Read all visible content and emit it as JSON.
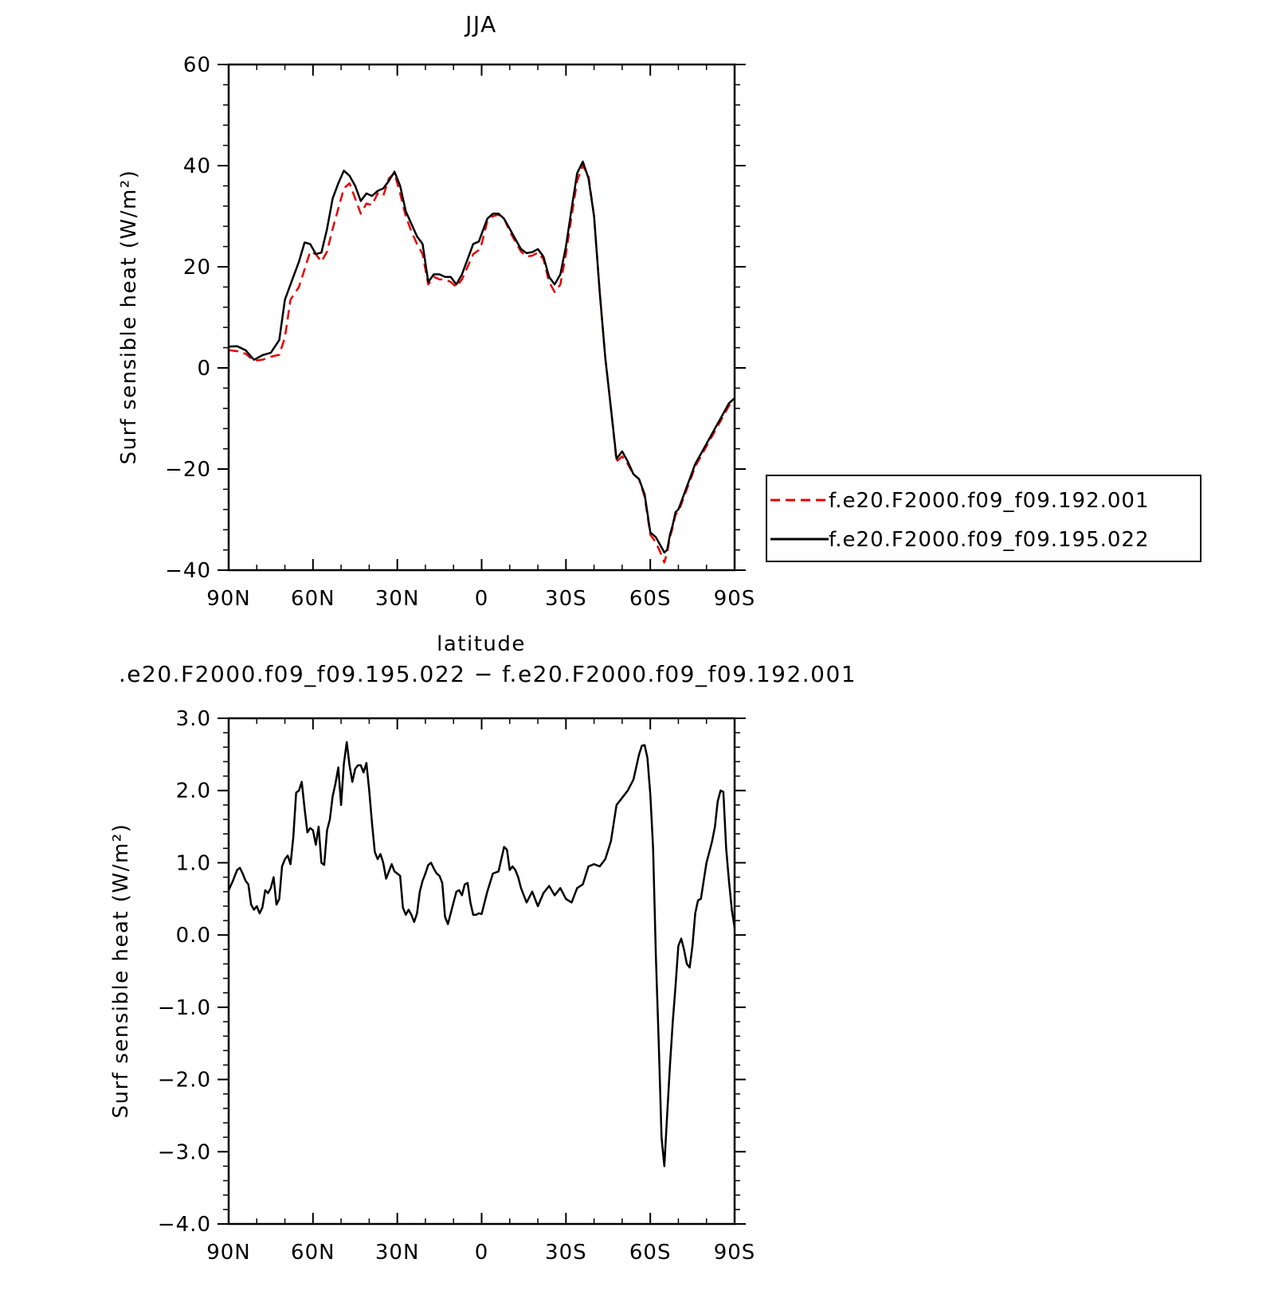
{
  "chart_data": [
    {
      "type": "line",
      "title": "JJA",
      "xlabel": "latitude",
      "ylabel": "Surf sensible heat (W/m²)",
      "xlim": [
        90,
        -90
      ],
      "ylim": [
        -40,
        60
      ],
      "xticks": [
        90,
        60,
        30,
        0,
        -30,
        -60,
        -90
      ],
      "xtick_labels": [
        "90N",
        "60N",
        "30N",
        "0",
        "30S",
        "60S",
        "90S"
      ],
      "yticks": [
        -40,
        -20,
        0,
        20,
        40,
        60
      ],
      "ytick_labels": [
        "−40",
        "−20",
        "0",
        "20",
        "40",
        "60"
      ],
      "legend_position": "right",
      "series": [
        {
          "name": "f.e20.F2000.f09_f09.192.001",
          "color": "#e60000",
          "style": "dashed",
          "x": [
            90,
            87,
            84,
            81,
            78,
            75,
            72,
            70,
            68,
            65,
            63,
            61,
            59,
            57,
            55,
            53,
            51,
            49,
            47,
            45,
            43,
            41,
            39,
            37,
            35,
            33,
            31,
            29,
            27,
            25,
            23,
            21,
            19,
            17,
            15,
            13,
            11,
            9,
            7,
            5,
            3,
            1,
            0,
            -2,
            -4,
            -6,
            -8,
            -10,
            -12,
            -14,
            -16,
            -18,
            -20,
            -22,
            -24,
            -26,
            -28,
            -30,
            -32,
            -34,
            -36,
            -38,
            -40,
            -42,
            -44,
            -46,
            -48,
            -50,
            -52,
            -54,
            -56,
            -58,
            -60,
            -62,
            -64,
            -65,
            -66,
            -67,
            -68,
            -69,
            -70,
            -71,
            -72,
            -73,
            -74,
            -75,
            -76,
            -77,
            -78,
            -79,
            -80,
            -81,
            -82,
            -83,
            -84,
            -85,
            -86,
            -87,
            -88,
            -90
          ],
          "y": [
            3.5,
            3.3,
            2.8,
            1.4,
            1.6,
            2.2,
            2.6,
            6,
            13.5,
            16,
            19.5,
            23,
            22.5,
            21,
            23,
            27.5,
            31.5,
            35.5,
            36.5,
            33.5,
            30.5,
            32.5,
            32.2,
            34.5,
            34.0,
            37.5,
            38.5,
            34.5,
            30,
            27,
            24.5,
            22.5,
            16.5,
            18,
            17.5,
            17.5,
            17,
            16,
            17.5,
            20,
            22.5,
            23.3,
            24.5,
            29.0,
            30.0,
            30.3,
            29.5,
            27.0,
            25,
            23,
            22.0,
            22.2,
            22.8,
            21.5,
            17.0,
            15.0,
            16.5,
            22.5,
            30,
            37,
            40,
            38,
            30,
            15,
            2,
            -8,
            -18.5,
            -17.5,
            -19,
            -21,
            -22,
            -25.5,
            -33,
            -34.5,
            -37,
            -38.5,
            -36.5,
            -33.5,
            -31.5,
            -29,
            -28.5,
            -27,
            -25.5,
            -24,
            -22.5,
            -21,
            -19.5,
            -18.5,
            -17.5,
            -16.5,
            -15.5,
            -14.5,
            -13.5,
            -12.5,
            -11.5,
            -10.5,
            -9.5,
            -8.5,
            -7.5,
            -6.5
          ]
        },
        {
          "name": "f.e20.F2000.f09_f09.195.022",
          "color": "#000000",
          "style": "solid",
          "x": [
            90,
            87,
            84,
            81,
            78,
            75,
            72,
            70,
            68,
            65,
            63,
            61,
            59,
            57,
            55,
            53,
            51,
            49,
            47,
            45,
            43,
            41,
            39,
            37,
            35,
            33,
            31,
            29,
            27,
            25,
            23,
            21,
            19,
            17,
            15,
            13,
            11,
            9,
            7,
            5,
            3,
            1,
            0,
            -2,
            -4,
            -6,
            -8,
            -10,
            -12,
            -14,
            -16,
            -18,
            -20,
            -22,
            -24,
            -26,
            -28,
            -30,
            -32,
            -34,
            -36,
            -38,
            -40,
            -42,
            -44,
            -46,
            -48,
            -50,
            -52,
            -54,
            -56,
            -58,
            -60,
            -62,
            -64,
            -65,
            -66,
            -67,
            -68,
            -69,
            -70,
            -71,
            -72,
            -73,
            -74,
            -75,
            -76,
            -77,
            -78,
            -79,
            -80,
            -81,
            -82,
            -83,
            -84,
            -85,
            -86,
            -87,
            -88,
            -90
          ],
          "y": [
            4.2,
            4.3,
            3.5,
            1.6,
            2.5,
            3.0,
            5.5,
            13.5,
            16.5,
            21,
            24.8,
            24.5,
            22.5,
            22.8,
            27.5,
            33.5,
            36.5,
            39,
            38,
            36,
            33,
            34.5,
            34.0,
            35.0,
            35.5,
            37.0,
            38.8,
            36.0,
            31.0,
            28.5,
            26.0,
            24.5,
            17.0,
            18.5,
            18.5,
            18.0,
            18.0,
            16.5,
            18.5,
            21.5,
            24.5,
            25.0,
            26.5,
            29.5,
            30.5,
            30.5,
            29.5,
            27.5,
            25.5,
            23.5,
            22.7,
            22.9,
            23.5,
            22.0,
            18.0,
            16.5,
            18.5,
            24.0,
            31.5,
            38.5,
            40.8,
            37.5,
            30.0,
            15.0,
            2.0,
            -8.0,
            -18.0,
            -16.5,
            -18.5,
            -21.0,
            -22.0,
            -25.0,
            -32.5,
            -33.5,
            -35.5,
            -36.5,
            -36.0,
            -33.0,
            -31.0,
            -28.5,
            -28.0,
            -26.5,
            -25.0,
            -23.5,
            -22.0,
            -20.5,
            -19.0,
            -18.0,
            -17.0,
            -16.0,
            -15.0,
            -14.0,
            -13.0,
            -12.0,
            -11.0,
            -10.0,
            -9.0,
            -8.0,
            -7.0,
            -6.0
          ]
        }
      ]
    },
    {
      "type": "line",
      "title": ".e20.F2000.f09_f09.195.022 − f.e20.F2000.f09_f09.192.001",
      "xlabel": "latitude",
      "ylabel": "Surf sensible heat (W/m²)",
      "xlim": [
        90,
        -90
      ],
      "ylim": [
        -4,
        3
      ],
      "xticks": [
        90,
        60,
        30,
        0,
        -30,
        -60,
        -90
      ],
      "xtick_labels": [
        "90N",
        "60N",
        "30N",
        "0",
        "30S",
        "60S",
        "90S"
      ],
      "yticks": [
        -4,
        -3,
        -2,
        -1,
        0,
        1,
        2,
        3
      ],
      "ytick_labels": [
        "−4.0",
        "−3.0",
        "−2.0",
        "−1.0",
        "0.0",
        "1.0",
        "2.0",
        "3.0"
      ],
      "series": [
        {
          "color": "#000000",
          "style": "solid",
          "x": [
            90,
            88.5,
            87,
            86,
            85,
            84,
            83,
            82,
            81,
            80,
            79,
            78,
            77,
            76,
            75,
            74,
            73,
            72,
            71,
            70,
            69,
            68,
            67,
            66,
            65,
            64,
            63,
            62,
            61,
            60,
            59,
            58,
            57,
            56,
            55,
            54,
            53,
            52,
            51,
            50,
            49,
            48,
            47,
            46,
            45,
            44,
            43,
            42,
            41,
            40,
            39,
            38,
            37,
            36,
            35,
            34,
            33,
            32,
            31,
            30,
            29,
            28,
            27,
            26,
            25,
            24,
            23,
            22,
            21,
            20,
            19,
            18,
            17,
            16,
            15,
            14,
            13,
            12,
            11,
            10,
            9,
            8,
            7,
            6,
            5,
            4,
            3,
            2,
            1,
            0,
            -2,
            -4,
            -6,
            -8,
            -9,
            -10,
            -11,
            -12,
            -13,
            -14,
            -16,
            -18,
            -20,
            -22,
            -24,
            -26,
            -28,
            -30,
            -32,
            -34,
            -36,
            -38,
            -40,
            -42,
            -44,
            -46,
            -48,
            -50,
            -52,
            -54,
            -56,
            -57,
            -58,
            -59,
            -60,
            -61,
            -62,
            -63,
            -64,
            -65,
            -66,
            -67,
            -68,
            -69,
            -70,
            -71,
            -72,
            -73,
            -74,
            -75,
            -76,
            -77,
            -78,
            -79,
            -80,
            -81,
            -82,
            -83,
            -84,
            -85,
            -86,
            -87,
            -88,
            -89,
            -90
          ],
          "y": [
            0.62,
            0.75,
            0.9,
            0.93,
            0.85,
            0.75,
            0.7,
            0.42,
            0.35,
            0.4,
            0.3,
            0.38,
            0.62,
            0.58,
            0.65,
            0.8,
            0.42,
            0.5,
            0.95,
            1.05,
            1.1,
            0.98,
            1.35,
            1.97,
            2.0,
            2.12,
            1.75,
            1.42,
            1.48,
            1.45,
            1.25,
            1.5,
            1.0,
            0.97,
            1.45,
            1.6,
            1.92,
            2.1,
            2.32,
            1.8,
            2.37,
            2.67,
            2.35,
            2.12,
            2.3,
            2.35,
            2.35,
            2.25,
            2.38,
            2.0,
            1.55,
            1.15,
            1.05,
            1.12,
            1.0,
            0.78,
            0.88,
            0.98,
            0.88,
            0.85,
            0.82,
            0.38,
            0.28,
            0.35,
            0.28,
            0.18,
            0.3,
            0.6,
            0.75,
            0.85,
            0.97,
            1.0,
            0.92,
            0.85,
            0.82,
            0.72,
            0.25,
            0.15,
            0.3,
            0.45,
            0.6,
            0.62,
            0.55,
            0.7,
            0.72,
            0.45,
            0.28,
            0.28,
            0.3,
            0.29,
            0.6,
            0.85,
            0.88,
            1.22,
            1.18,
            0.9,
            0.95,
            0.9,
            0.8,
            0.65,
            0.45,
            0.6,
            0.4,
            0.58,
            0.68,
            0.55,
            0.65,
            0.5,
            0.45,
            0.65,
            0.7,
            0.95,
            0.98,
            0.95,
            1.05,
            1.3,
            1.8,
            1.9,
            2.0,
            2.15,
            2.5,
            2.62,
            2.63,
            2.45,
            1.95,
            1.2,
            -0.3,
            -1.5,
            -2.8,
            -3.2,
            -2.5,
            -1.8,
            -1.2,
            -0.7,
            -0.15,
            -0.05,
            -0.2,
            -0.4,
            -0.45,
            -0.15,
            0.3,
            0.48,
            0.5,
            0.75,
            1.0,
            1.15,
            1.3,
            1.5,
            1.85,
            2.0,
            1.98,
            1.2,
            0.75,
            0.35,
            0.1
          ]
        }
      ]
    }
  ]
}
